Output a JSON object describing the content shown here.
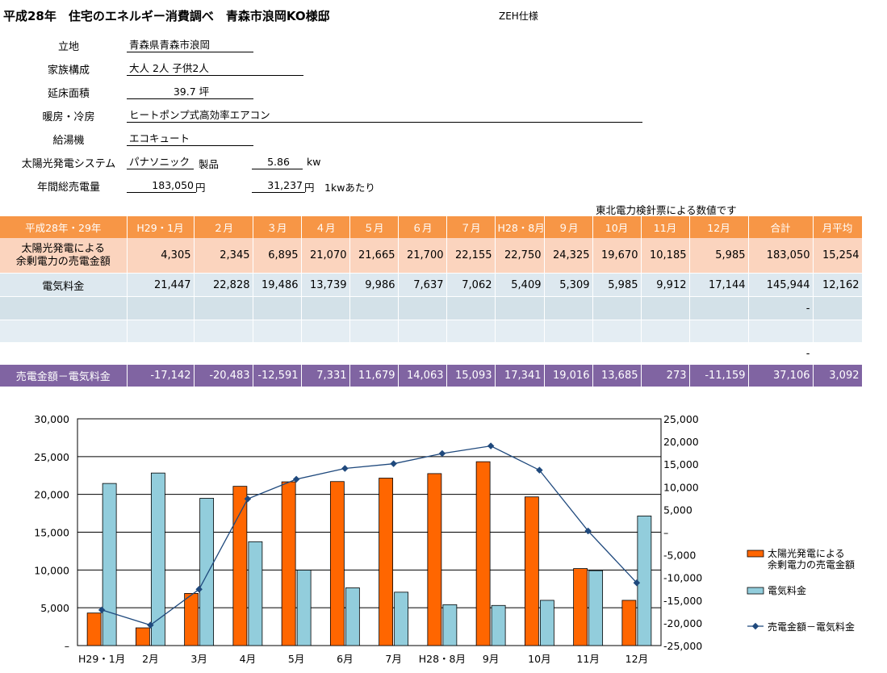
{
  "header": {
    "title": "平成28年　住宅のエネルギー消費調べ　青森市浪岡KO様邸",
    "spec": "ZEH仕様"
  },
  "info": {
    "location_label": "立地",
    "location": "青森県青森市浪岡",
    "family_label": "家族構成",
    "family": "大人 2人  子供2人",
    "area_label": "延床面積",
    "area": "39.7 坪",
    "heating_label": "暖房・冷房",
    "heating": "ヒートポンプ式高効率エアコン",
    "water_label": "給湯機",
    "water": "エコキュート",
    "solar_label": "太陽光発電システム",
    "solar_maker": "パナソニック",
    "solar_maker_suffix": "製品",
    "solar_kw": "5.86",
    "solar_kw_unit": "kw",
    "annual_label": "年間総売電量",
    "annual_yen": "183,050",
    "annual_yen_unit": "円",
    "per_kw": "31,237",
    "per_kw_unit": "円　1kwあたり"
  },
  "note": "東北電力検針票による数値です",
  "table": {
    "header": [
      "平成28年・29年",
      "H29・1月",
      "２月",
      "３月",
      "４月",
      "５月",
      "６月",
      "７月",
      "H28・8月",
      "９月",
      "10月",
      "11月",
      "12月",
      "合計",
      "月平均"
    ],
    "row_solar_label_1": "太陽光発電による",
    "row_solar_label_2": "余剰電力の売電金額",
    "row_solar": [
      "4,305",
      "2,345",
      "6,895",
      "21,070",
      "21,665",
      "21,700",
      "22,155",
      "22,750",
      "24,325",
      "19,670",
      "10,185",
      "5,985",
      "183,050",
      "15,254"
    ],
    "row_elec_label": "電気料金",
    "row_elec": [
      "21,447",
      "22,828",
      "19,486",
      "13,739",
      "9,986",
      "7,637",
      "7,062",
      "5,409",
      "5,309",
      "5,985",
      "9,912",
      "17,144",
      "145,944",
      "12,162"
    ],
    "row_blank1_total": "-",
    "row_blank3_total": "-",
    "row_diff_label": "売電金額－電気料金",
    "row_diff": [
      "-17,142",
      "-20,483",
      "-12,591",
      "7,331",
      "11,679",
      "14,063",
      "15,093",
      "17,341",
      "19,016",
      "13,685",
      "273",
      "-11,159",
      "37,106",
      "3,092"
    ]
  },
  "chart_data": {
    "type": "bar",
    "categories": [
      "H29・1月",
      "2月",
      "3月",
      "4月",
      "5月",
      "6月",
      "7月",
      "H28・8月",
      "9月",
      "10月",
      "11月",
      "12月"
    ],
    "series": [
      {
        "name": "太陽光発電による余剰電力の売電金額",
        "type": "bar",
        "axis": "left",
        "color": "#ff6600",
        "values": [
          4305,
          2345,
          6895,
          21070,
          21665,
          21700,
          22155,
          22750,
          24325,
          19670,
          10185,
          5985
        ]
      },
      {
        "name": "電気料金",
        "type": "bar",
        "axis": "left",
        "color": "#92cddc",
        "values": [
          21447,
          22828,
          19486,
          13739,
          9986,
          7637,
          7062,
          5409,
          5309,
          5985,
          9912,
          17144
        ]
      },
      {
        "name": "売電金額－電気料金",
        "type": "line",
        "axis": "right",
        "color": "#1f497d",
        "values": [
          -17142,
          -20483,
          -12591,
          7331,
          11679,
          14063,
          15093,
          17341,
          19016,
          13685,
          273,
          -11159
        ]
      }
    ],
    "left_axis": {
      "min": 0,
      "max": 30000,
      "ticks": [
        "–",
        "5,000",
        "10,000",
        "15,000",
        "20,000",
        "25,000",
        "30,000"
      ]
    },
    "right_axis": {
      "min": -25000,
      "max": 25000,
      "ticks": [
        "-25,000",
        "-20,000",
        "-15,000",
        "-10,000",
        "-5,000",
        "–",
        "5,000",
        "10,000",
        "15,000",
        "20,000",
        "25,000"
      ]
    },
    "legend_position": "right",
    "legend_labels": [
      "太陽光発電による",
      "余剰電力の売電金額",
      "電気料金",
      "売電金額－電気料金"
    ],
    "grid": true
  }
}
